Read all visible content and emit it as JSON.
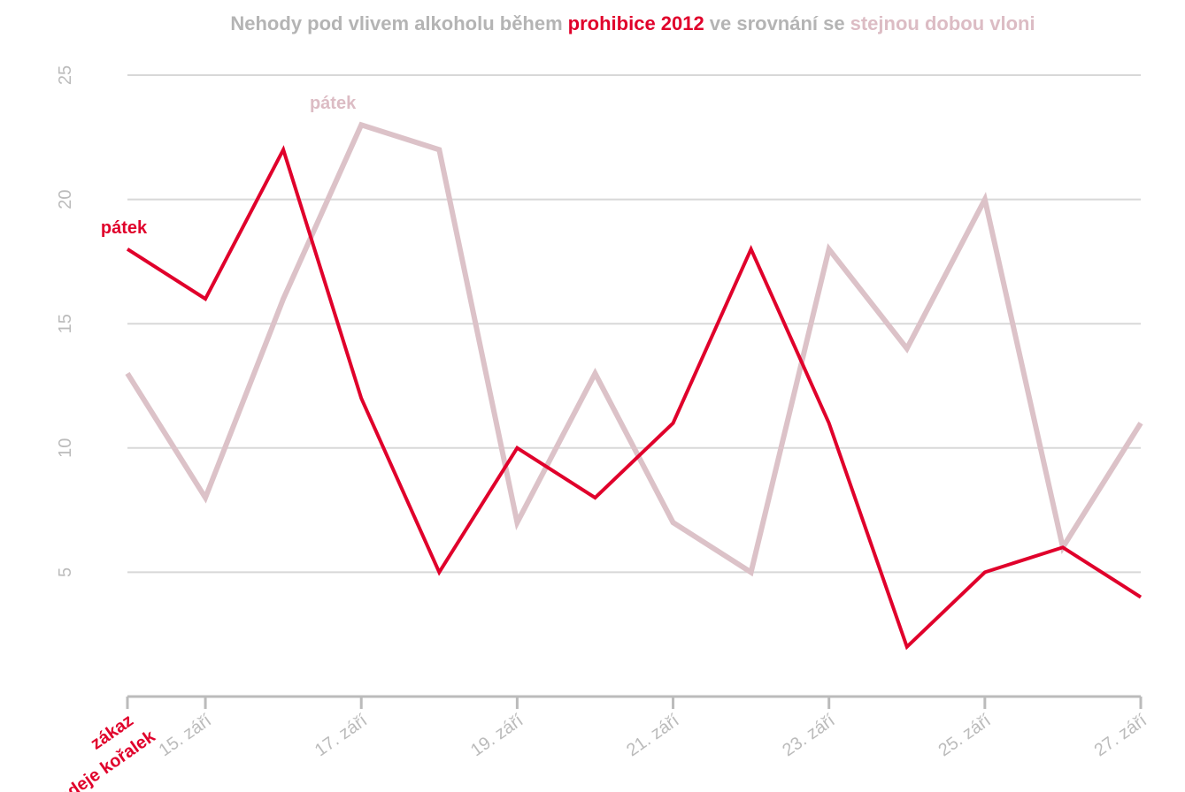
{
  "chart_data": {
    "type": "line",
    "title_parts": [
      {
        "text": "Nehody pod vlivem alkoholu během",
        "color": "#b4b4b4",
        "bold": false
      },
      {
        "text": "prohibice 2012",
        "color": "#e0002b",
        "bold": true
      },
      {
        "text": "ve srovnání se",
        "color": "#b4b4b4",
        "bold": false
      },
      {
        "text": "stejnou dobou vloni",
        "color": "#dcbcc4",
        "bold": false
      }
    ],
    "categories": [
      null,
      "15. září",
      null,
      "17. září",
      null,
      "19. září",
      null,
      "21. září",
      null,
      "23. září",
      null,
      "25. září",
      null,
      "27. září"
    ],
    "series": [
      {
        "color": "#dcc2c8",
        "values": [
          13,
          8,
          16,
          23,
          22,
          7,
          13,
          7,
          5,
          18,
          14,
          20,
          6,
          11
        ]
      },
      {
        "color": "#e0002b",
        "values": [
          18,
          16,
          22,
          12,
          5,
          10,
          8,
          11,
          18,
          11,
          2,
          5,
          6,
          4
        ]
      }
    ],
    "annotations": [
      {
        "text": "pátek",
        "series": 1,
        "index": 0,
        "color": "#e0002b"
      },
      {
        "text": "pátek",
        "series": 0,
        "index": 3,
        "color": "#dcbcc4"
      }
    ],
    "start_label": {
      "lines": [
        "zákaz",
        "prodeje kořalek"
      ],
      "color": "#e0002b"
    },
    "ylim": [
      0,
      25
    ],
    "yticks": [
      5,
      10,
      15,
      20,
      25
    ],
    "grid": true
  }
}
